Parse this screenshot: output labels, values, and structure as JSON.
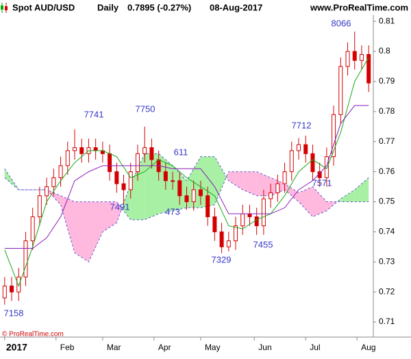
{
  "chart_data": {
    "type": "candlestick",
    "title": "Spot AUD/USD",
    "period": "Daily",
    "last": "0.7895 (-0.27%)",
    "date": "08-Aug-2017",
    "source": "www.ProRealTime.com",
    "copyright": "© ProRealTime.com",
    "color": "#d40000",
    "x": [
      0,
      3,
      6,
      9,
      12,
      15,
      18,
      21,
      24,
      27,
      30,
      33,
      36,
      39,
      42,
      45,
      48,
      51,
      54,
      57,
      60,
      63,
      66,
      69,
      72,
      75,
      78,
      81,
      84,
      87,
      90,
      93,
      96,
      99,
      102,
      105,
      108,
      111,
      114,
      117,
      120,
      123,
      126,
      129,
      132,
      135,
      138,
      141,
      144,
      147,
      150,
      153,
      156
    ],
    "open": [
      0.718,
      0.722,
      0.72,
      0.725,
      0.737,
      0.745,
      0.752,
      0.755,
      0.758,
      0.762,
      0.767,
      0.768,
      0.766,
      0.768,
      0.767,
      0.766,
      0.76,
      0.756,
      0.754,
      0.76,
      0.766,
      0.768,
      0.764,
      0.76,
      0.757,
      0.757,
      0.752,
      0.75,
      0.754,
      0.752,
      0.745,
      0.74,
      0.735,
      0.737,
      0.742,
      0.746,
      0.745,
      0.742,
      0.751,
      0.753,
      0.756,
      0.76,
      0.767,
      0.769,
      0.766,
      0.76,
      0.758,
      0.765,
      0.779,
      0.795,
      0.8,
      0.797,
      0.799
    ],
    "high": [
      0.725,
      0.725,
      0.728,
      0.74,
      0.748,
      0.755,
      0.758,
      0.761,
      0.765,
      0.77,
      0.7741,
      0.771,
      0.771,
      0.771,
      0.77,
      0.769,
      0.763,
      0.759,
      0.763,
      0.769,
      0.775,
      0.771,
      0.767,
      0.763,
      0.76,
      0.76,
      0.755,
      0.757,
      0.757,
      0.755,
      0.748,
      0.743,
      0.74,
      0.745,
      0.749,
      0.749,
      0.748,
      0.754,
      0.756,
      0.759,
      0.763,
      0.77,
      0.7712,
      0.772,
      0.769,
      0.763,
      0.768,
      0.782,
      0.798,
      0.803,
      0.8066,
      0.802,
      0.802
    ],
    "low": [
      0.7158,
      0.717,
      0.717,
      0.722,
      0.734,
      0.742,
      0.749,
      0.752,
      0.755,
      0.759,
      0.764,
      0.763,
      0.763,
      0.764,
      0.763,
      0.757,
      0.753,
      0.7491,
      0.751,
      0.757,
      0.763,
      0.761,
      0.757,
      0.754,
      0.754,
      0.749,
      0.7473,
      0.747,
      0.749,
      0.742,
      0.737,
      0.7329,
      0.7335,
      0.734,
      0.739,
      0.742,
      0.739,
      0.739,
      0.748,
      0.75,
      0.753,
      0.757,
      0.764,
      0.763,
      0.757,
      0.755,
      0.755,
      0.762,
      0.776,
      0.792,
      0.794,
      0.794,
      0.7865
    ],
    "close": [
      0.722,
      0.72,
      0.725,
      0.737,
      0.745,
      0.752,
      0.755,
      0.758,
      0.762,
      0.767,
      0.768,
      0.766,
      0.768,
      0.767,
      0.766,
      0.76,
      0.756,
      0.754,
      0.76,
      0.766,
      0.768,
      0.764,
      0.76,
      0.757,
      0.757,
      0.752,
      0.75,
      0.754,
      0.752,
      0.745,
      0.74,
      0.735,
      0.737,
      0.742,
      0.746,
      0.745,
      0.742,
      0.751,
      0.753,
      0.756,
      0.76,
      0.767,
      0.769,
      0.766,
      0.76,
      0.758,
      0.765,
      0.779,
      0.795,
      0.8,
      0.797,
      0.799,
      0.7895
    ],
    "indicator_x": [
      0,
      6,
      12,
      18,
      24,
      30,
      36,
      42,
      48,
      54,
      60,
      66,
      72,
      78,
      84,
      90,
      96,
      102,
      108,
      114,
      120,
      126,
      132,
      138,
      144,
      150,
      156
    ],
    "lines": [
      {
        "color": "#16a816",
        "values": [
          0.734,
          0.722,
          0.735,
          0.75,
          0.757,
          0.763,
          0.767,
          0.767,
          0.765,
          0.758,
          0.76,
          0.764,
          0.762,
          0.758,
          0.755,
          0.752,
          0.742,
          0.741,
          0.744,
          0.746,
          0.752,
          0.76,
          0.764,
          0.761,
          0.773,
          0.79,
          0.798
        ]
      },
      {
        "color": "#8a1ab8",
        "values": [
          0.7345,
          0.7345,
          0.7345,
          0.738,
          0.745,
          0.757,
          0.76,
          0.762,
          0.762,
          0.762,
          0.762,
          0.762,
          0.761,
          0.761,
          0.761,
          0.755,
          0.746,
          0.746,
          0.746,
          0.746,
          0.748,
          0.754,
          0.757,
          0.762,
          0.776,
          0.782,
          0.782
        ]
      }
    ],
    "cloud": {
      "line_color": "#5a5ad0",
      "up_color": "#a8f0a4",
      "down_color": "#ffb8de",
      "span_a": [
        0.761,
        0.754,
        0.754,
        0.754,
        0.749,
        0.733,
        0.73,
        0.74,
        0.743,
        0.756,
        0.766,
        0.766,
        0.762,
        0.757,
        0.765,
        0.765,
        0.757,
        0.754,
        0.752,
        0.752,
        0.754,
        0.75,
        0.745,
        0.747,
        0.751,
        0.754,
        0.758
      ],
      "span_b": [
        0.758,
        0.754,
        0.754,
        0.754,
        0.752,
        0.75,
        0.75,
        0.75,
        0.75,
        0.744,
        0.744,
        0.746,
        0.747,
        0.748,
        0.748,
        0.749,
        0.76,
        0.76,
        0.76,
        0.758,
        0.756,
        0.753,
        0.755,
        0.75,
        0.75,
        0.75,
        0.75
      ]
    },
    "annotations": [
      "7158",
      "7741",
      "7750",
      "7491",
      "611",
      "473",
      "7329",
      "7455",
      "7712",
      "7571",
      "8066"
    ],
    "annotation_color": "#3636c8",
    "xlim": [
      -2,
      158
    ],
    "xticks": [
      {
        "value": 0,
        "label": "2017"
      },
      {
        "value": 22,
        "label": "Feb"
      },
      {
        "value": 42,
        "label": "Mar"
      },
      {
        "value": 64,
        "label": "Apr"
      },
      {
        "value": 84,
        "label": "May"
      },
      {
        "value": 107,
        "label": "Jun"
      },
      {
        "value": 129,
        "label": "Jul"
      },
      {
        "value": 151,
        "label": "Aug"
      }
    ],
    "ylim": [
      0.705,
      0.8171
    ],
    "yticks": [
      0.71,
      0.72,
      0.73,
      0.74,
      0.75,
      0.76,
      0.77,
      0.78,
      0.79,
      0.8,
      0.81
    ]
  }
}
